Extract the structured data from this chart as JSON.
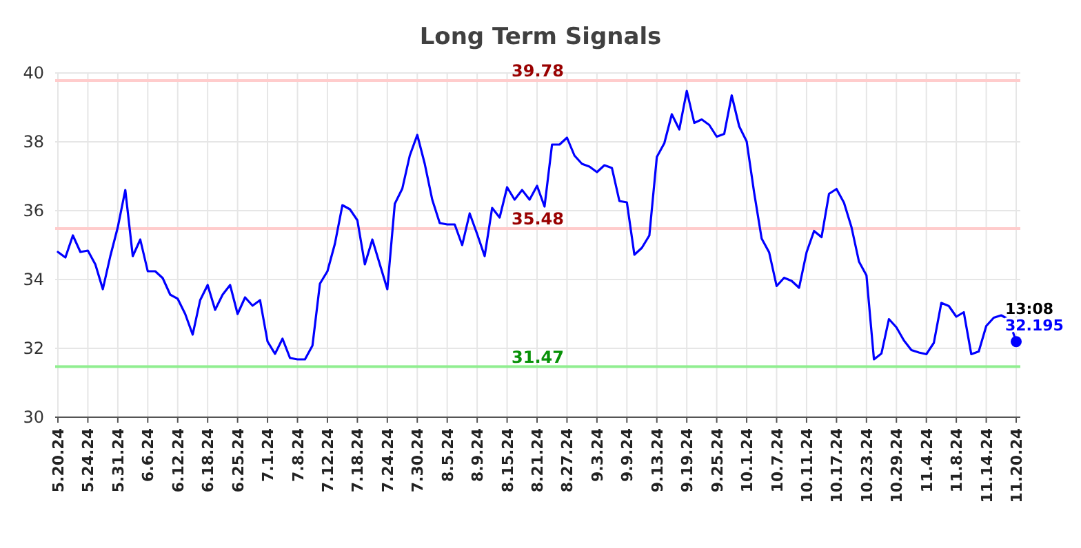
{
  "chart_data": {
    "type": "line",
    "title": "Long Term Signals",
    "categories": [
      "5.20.24",
      null,
      null,
      null,
      "5.24.24",
      null,
      null,
      null,
      "5.31.24",
      null,
      null,
      null,
      "6.6.24",
      null,
      null,
      null,
      "6.12.24",
      null,
      null,
      null,
      "6.18.24",
      null,
      null,
      null,
      "6.25.24",
      null,
      null,
      null,
      "7.1.24",
      null,
      null,
      null,
      "7.8.24",
      null,
      null,
      null,
      "7.12.24",
      null,
      null,
      null,
      "7.18.24",
      null,
      null,
      null,
      "7.24.24",
      null,
      null,
      null,
      "7.30.24",
      null,
      null,
      null,
      "8.5.24",
      null,
      null,
      null,
      "8.9.24",
      null,
      null,
      null,
      "8.15.24",
      null,
      null,
      null,
      "8.21.24",
      null,
      null,
      null,
      "8.27.24",
      null,
      null,
      null,
      "9.3.24",
      null,
      null,
      null,
      "9.9.24",
      null,
      null,
      null,
      "9.13.24",
      null,
      null,
      null,
      "9.19.24",
      null,
      null,
      null,
      "9.25.24",
      null,
      null,
      null,
      "10.1.24",
      null,
      null,
      null,
      "10.7.24",
      null,
      null,
      null,
      "10.11.24",
      null,
      null,
      null,
      "10.17.24",
      null,
      null,
      null,
      "10.23.24",
      null,
      null,
      null,
      "10.29.24",
      null,
      null,
      null,
      "11.4.24",
      null,
      null,
      null,
      "11.8.24",
      null,
      null,
      null,
      "11.14.24",
      null,
      null,
      null,
      "11.20.24"
    ],
    "series": [
      {
        "color": "#0000ff",
        "values": [
          34.8,
          34.64,
          35.28,
          34.8,
          34.84,
          34.44,
          33.72,
          34.68,
          35.52,
          36.6,
          34.68,
          35.16,
          34.24,
          34.24,
          34.04,
          33.56,
          33.44,
          33.0,
          32.4,
          33.4,
          33.84,
          33.12,
          33.56,
          33.84,
          33.0,
          33.48,
          33.24,
          33.4,
          32.2,
          31.84,
          32.28,
          31.72,
          31.68,
          31.68,
          32.08,
          33.88,
          34.24,
          35.04,
          36.16,
          36.04,
          35.72,
          34.44,
          35.16,
          34.44,
          33.72,
          36.2,
          36.64,
          37.6,
          38.2,
          37.36,
          36.32,
          35.64,
          35.6,
          35.6,
          35.0,
          35.92,
          35.32,
          34.68,
          36.08,
          35.8,
          36.68,
          36.32,
          36.6,
          36.32,
          36.72,
          36.12,
          37.92,
          37.92,
          38.12,
          37.6,
          37.36,
          37.28,
          37.12,
          37.32,
          37.24,
          36.28,
          36.24,
          34.72,
          34.92,
          35.28,
          37.56,
          37.96,
          38.8,
          38.36,
          39.48,
          38.55,
          38.65,
          38.49,
          38.15,
          38.23,
          39.35,
          38.45,
          38.01,
          36.52,
          35.19,
          34.79,
          33.81,
          34.05,
          33.96,
          33.76,
          34.79,
          35.41,
          35.23,
          36.49,
          36.63,
          36.23,
          35.52,
          34.52,
          34.12,
          31.68,
          31.85,
          32.85,
          32.61,
          32.23,
          31.95,
          31.88,
          31.83,
          32.16,
          33.32,
          33.23,
          32.92,
          33.05,
          31.83,
          31.91,
          32.65,
          32.89,
          32.96,
          32.84,
          32.195
        ]
      },
      {
        "type": "scatter",
        "color": "#0000ff",
        "x": [
          "11.20.24"
        ],
        "values": [
          32.195
        ]
      }
    ],
    "ylim": [
      30,
      40
    ],
    "yticks": [
      30,
      32,
      34,
      36,
      38,
      40
    ],
    "grid": true,
    "ref_lines": [
      {
        "axis": "y",
        "value": 39.78,
        "label": "39.78",
        "color": "#ffcccc"
      },
      {
        "axis": "y",
        "value": 35.48,
        "label": "35.48",
        "color": "#ffcccc"
      },
      {
        "axis": "y",
        "value": 31.47,
        "label": "31.47",
        "color": "#90ee90"
      }
    ],
    "annotations": [
      {
        "text": "13:08",
        "x": "11.20.24",
        "y": 32.195
      },
      {
        "text": "32.195",
        "x": "11.20.24",
        "y": 32.195
      }
    ]
  }
}
